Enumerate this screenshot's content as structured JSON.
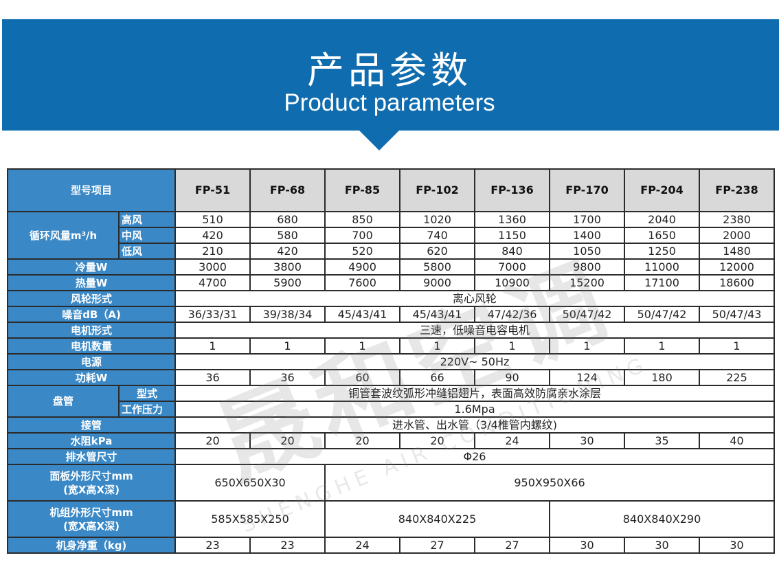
{
  "banner": {
    "title": "产品参数",
    "subtitle": "Product parameters",
    "color": "#0f6cae"
  },
  "watermark": {
    "main": "晟和空调",
    "sub": "SHENGHE AIR CONDITIONING"
  },
  "table": {
    "corner": "型号项目",
    "models": [
      "FP-51",
      "FP-68",
      "FP-85",
      "FP-102",
      "FP-136",
      "FP-170",
      "FP-204",
      "FP-238"
    ],
    "rows": [
      {
        "group": "循环风量m³/h",
        "groupSpan": 3,
        "sub": "高风",
        "cells": [
          [
            "510",
            1
          ],
          [
            "680",
            1
          ],
          [
            "850",
            1
          ],
          [
            "1020",
            1
          ],
          [
            "1360",
            1
          ],
          [
            "1700",
            1
          ],
          [
            "2040",
            1
          ],
          [
            "2380",
            1
          ]
        ]
      },
      {
        "sub": "中风",
        "cells": [
          [
            "420",
            1
          ],
          [
            "580",
            1
          ],
          [
            "700",
            1
          ],
          [
            "740",
            1
          ],
          [
            "1150",
            1
          ],
          [
            "1400",
            1
          ],
          [
            "1650",
            1
          ],
          [
            "2000",
            1
          ]
        ]
      },
      {
        "sub": "低风",
        "cells": [
          [
            "210",
            1
          ],
          [
            "420",
            1
          ],
          [
            "520",
            1
          ],
          [
            "620",
            1
          ],
          [
            "840",
            1
          ],
          [
            "1050",
            1
          ],
          [
            "1250",
            1
          ],
          [
            "1480",
            1
          ]
        ]
      },
      {
        "label": "冷量W",
        "cells": [
          [
            "3000",
            1
          ],
          [
            "3800",
            1
          ],
          [
            "4900",
            1
          ],
          [
            "5800",
            1
          ],
          [
            "7000",
            1
          ],
          [
            "9800",
            1
          ],
          [
            "11000",
            1
          ],
          [
            "12000",
            1
          ]
        ]
      },
      {
        "label": "热量W",
        "cells": [
          [
            "4700",
            1
          ],
          [
            "5900",
            1
          ],
          [
            "7600",
            1
          ],
          [
            "9000",
            1
          ],
          [
            "10900",
            1
          ],
          [
            "15200",
            1
          ],
          [
            "17100",
            1
          ],
          [
            "18600",
            1
          ]
        ]
      },
      {
        "label": "风轮形式",
        "cells": [
          [
            "离心风轮",
            8
          ]
        ]
      },
      {
        "label": "噪音dB（A)",
        "cells": [
          [
            "36/33/31",
            1
          ],
          [
            "39/38/34",
            1
          ],
          [
            "45/43/41",
            1
          ],
          [
            "45/43/41",
            1
          ],
          [
            "47/42/36",
            1
          ],
          [
            "50/47/42",
            1
          ],
          [
            "50/47/42",
            1
          ],
          [
            "50/47/43",
            1
          ]
        ]
      },
      {
        "label": "电机形式",
        "cells": [
          [
            "三速，低噪音电容电机",
            8
          ]
        ]
      },
      {
        "label": "电机数量",
        "cells": [
          [
            "1",
            1
          ],
          [
            "1",
            1
          ],
          [
            "1",
            1
          ],
          [
            "1",
            1
          ],
          [
            "1",
            1
          ],
          [
            "1",
            1
          ],
          [
            "1",
            1
          ],
          [
            "1",
            1
          ]
        ]
      },
      {
        "label": "电源",
        "cells": [
          [
            "220V~ 50Hz",
            8
          ]
        ]
      },
      {
        "label": "功耗W",
        "cells": [
          [
            "36",
            1
          ],
          [
            "36",
            1
          ],
          [
            "60",
            1
          ],
          [
            "66",
            1
          ],
          [
            "90",
            1
          ],
          [
            "124",
            1
          ],
          [
            "180",
            1
          ],
          [
            "225",
            1
          ]
        ]
      },
      {
        "group": "盘管",
        "groupSpan": 2,
        "sub": "型式",
        "subCenter": true,
        "cells": [
          [
            "铜管套波纹弧形冲缝铝翅片，表面高效防腐亲水涂层",
            8
          ]
        ]
      },
      {
        "sub": "工作压力",
        "cells": [
          [
            "1.6Mpa",
            8
          ]
        ]
      },
      {
        "label": "接管",
        "cells": [
          [
            "进水管、出水管（3/4椎管内螺纹)",
            8
          ]
        ]
      },
      {
        "label": "水阻kPa",
        "cells": [
          [
            "20",
            1
          ],
          [
            "20",
            1
          ],
          [
            "20",
            1
          ],
          [
            "20",
            1
          ],
          [
            "24",
            1
          ],
          [
            "30",
            1
          ],
          [
            "35",
            1
          ],
          [
            "40",
            1
          ]
        ]
      },
      {
        "label": "排水管尺寸",
        "cells": [
          [
            "Φ26",
            8
          ]
        ]
      },
      {
        "label": "面板外形尺寸mm\n(宽X高X深)",
        "tall": true,
        "cells": [
          [
            "650X650X30",
            2
          ],
          [
            "950X950X66",
            6
          ]
        ]
      },
      {
        "label": "机组外形尺寸mm\n(宽X高X深)",
        "tall": true,
        "cells": [
          [
            "585X585X250",
            2
          ],
          [
            "840X840X225",
            3
          ],
          [
            "840X840X290",
            3
          ]
        ]
      },
      {
        "label": "机身净重（kg)",
        "cells": [
          [
            "23",
            1
          ],
          [
            "23",
            1
          ],
          [
            "24",
            1
          ],
          [
            "27",
            1
          ],
          [
            "27",
            1
          ],
          [
            "30",
            1
          ],
          [
            "30",
            1
          ],
          [
            "30",
            1
          ]
        ]
      }
    ]
  }
}
